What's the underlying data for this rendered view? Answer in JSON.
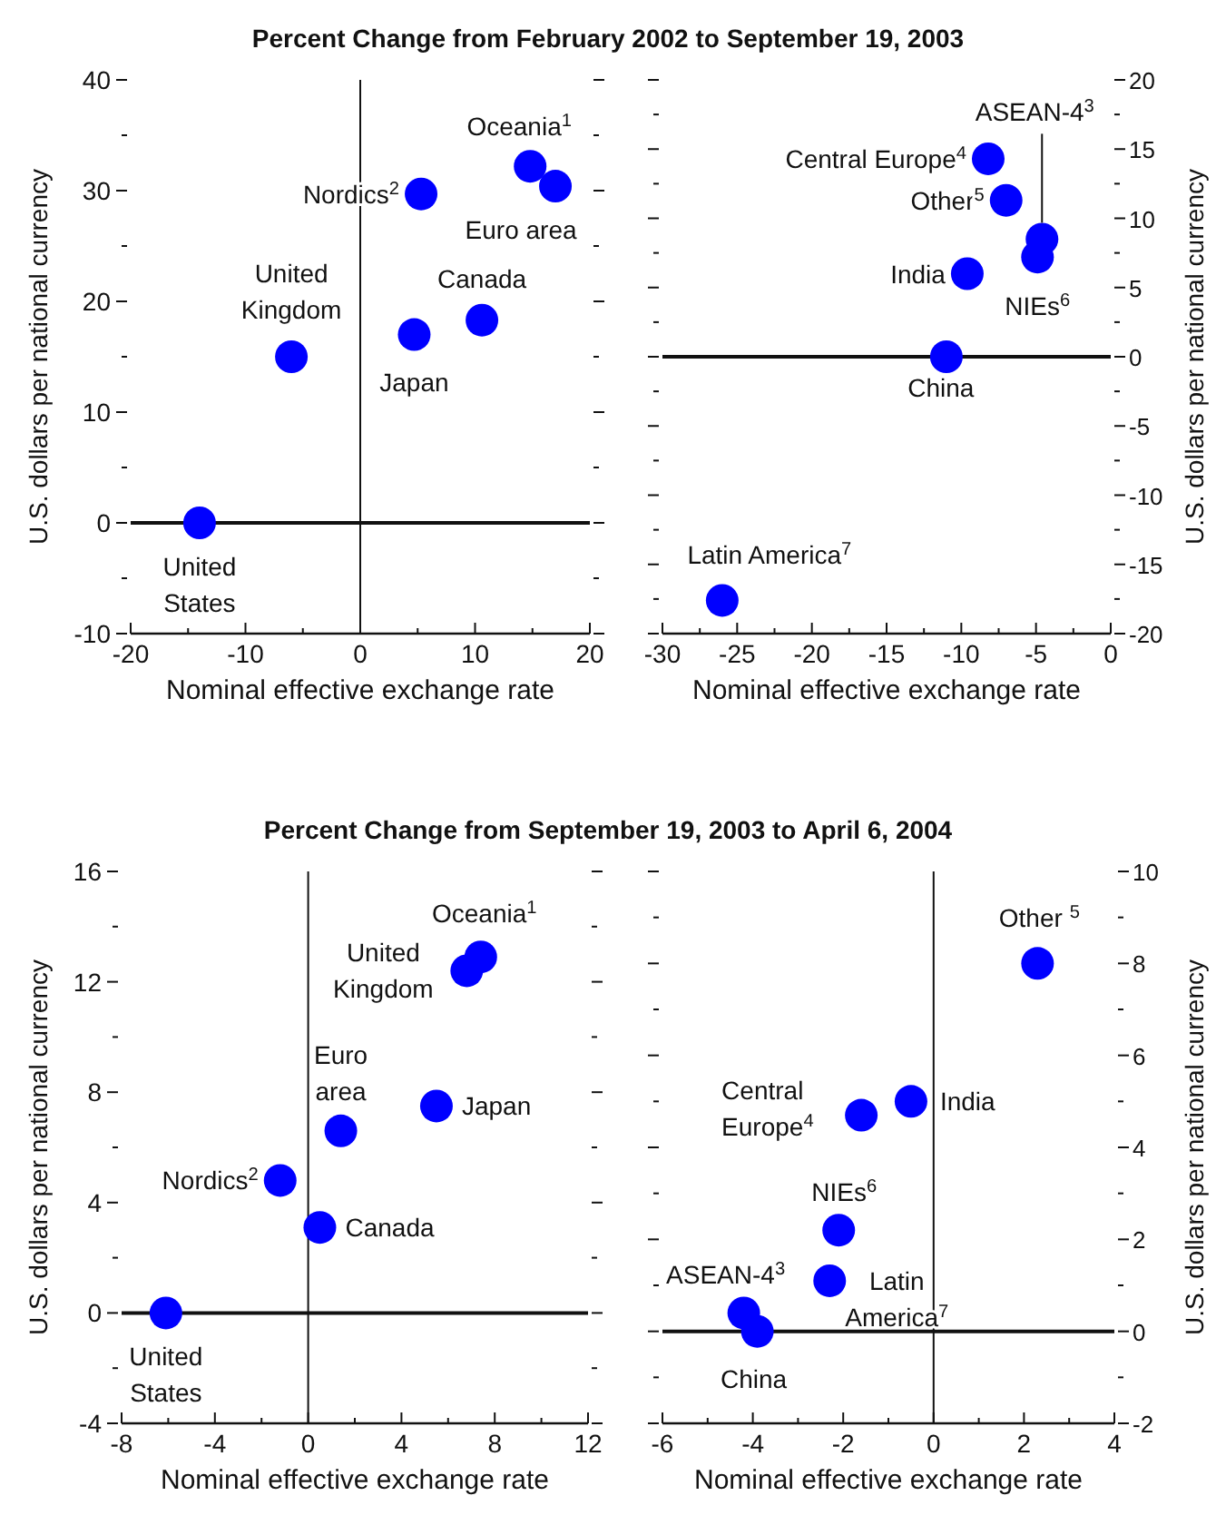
{
  "chart_data": [
    {
      "type": "scatter",
      "title": "Percent Change from February 2002 to September 19, 2003",
      "xlabel": "Nominal effective exchange rate",
      "ylabel": "U.S. dollars per national currency",
      "marker": "circle",
      "xlim": [
        -20,
        20
      ],
      "xticks": [
        -20,
        {
          "value": -15,
          "label": null
        },
        -10,
        {
          "value": -5,
          "label": null
        },
        0,
        {
          "value": 5,
          "label": null
        },
        10,
        {
          "value": 15,
          "label": null
        },
        20
      ],
      "ylim": [
        -10,
        40
      ],
      "yticks": [
        -10,
        {
          "value": -5,
          "label": null
        },
        0,
        {
          "value": 5,
          "label": null
        },
        10,
        {
          "value": 15,
          "label": null
        },
        20,
        {
          "value": 25,
          "label": null
        },
        30,
        {
          "value": 35,
          "label": null
        },
        40
      ],
      "series": [
        {
          "color": "#0000ff",
          "x": [
            -14,
            -6,
            5.3,
            4.7,
            10.6,
            14.8,
            17
          ],
          "values": [
            0,
            15,
            29.7,
            17,
            18.3,
            32.2,
            30.4
          ]
        }
      ],
      "ref_lines": [
        {
          "axis": "x",
          "value": 0
        },
        {
          "axis": "y",
          "value": 0
        }
      ],
      "annotations": [
        {
          "text": "United\nStates",
          "x": -14,
          "y": 0
        },
        {
          "text": "United\nKingdom",
          "x": -6,
          "y": 15
        },
        {
          "text": "Nordics$^{2}$",
          "x": 5.3,
          "y": 29.7
        },
        {
          "text": "Japan",
          "x": 4.7,
          "y": 17
        },
        {
          "text": "Canada",
          "x": 10.6,
          "y": 18.3
        },
        {
          "text": "Oceania$^{1}$",
          "x": 14.8,
          "y": 32.2
        },
        {
          "text": "Euro area",
          "x": 17,
          "y": 30.4
        }
      ]
    },
    {
      "type": "scatter",
      "xlabel": "Nominal effective exchange rate",
      "ylabel": "U.S. dollars per national currency",
      "marker": "circle",
      "xlim": [
        -30,
        0
      ],
      "xticks": [
        -30,
        {
          "value": -27.5,
          "label": null
        },
        -25,
        {
          "value": -22.5,
          "label": null
        },
        -20,
        {
          "value": -17.5,
          "label": null
        },
        -15,
        {
          "value": -12.5,
          "label": null
        },
        -10,
        {
          "value": -7.5,
          "label": null
        },
        -5,
        {
          "value": -2.5,
          "label": null
        },
        0
      ],
      "ylim": [
        -20,
        20
      ],
      "yticks": [
        -20,
        {
          "value": -17.5,
          "label": null
        },
        -15,
        {
          "value": -12.5,
          "label": null
        },
        -10,
        {
          "value": -7.5,
          "label": null
        },
        -5,
        {
          "value": -2.5,
          "label": null
        },
        0,
        {
          "value": 2.5,
          "label": null
        },
        5,
        {
          "value": 7.5,
          "label": null
        },
        10,
        {
          "value": 12.5,
          "label": null
        },
        15,
        {
          "value": 17.5,
          "label": null
        },
        20
      ],
      "series": [
        {
          "color": "#0000ff",
          "x": [
            -8.2,
            -7,
            -4.6,
            -4.9,
            -9.6,
            -11,
            -26
          ],
          "values": [
            14.3,
            11.3,
            8.5,
            7.2,
            6,
            0,
            -17.6
          ]
        }
      ],
      "ref_lines": [
        {
          "axis": "y",
          "value": 0
        }
      ],
      "annotations": [
        {
          "text": "Central Europe$^{4}$",
          "x": -8.2,
          "y": 14.3
        },
        {
          "text": "Other$^{5}$",
          "x": -7,
          "y": 11.3
        },
        {
          "text": "ASEAN-4$^{3}$",
          "x": -4.6,
          "y": 8.5
        },
        {
          "text": "NIEs$^{6}$",
          "x": -4.9,
          "y": 7.2
        },
        {
          "text": "India",
          "x": -9.6,
          "y": 6
        },
        {
          "text": "China",
          "x": -11,
          "y": 0
        },
        {
          "text": "Latin America$^{7}$",
          "x": -26,
          "y": -17.6
        }
      ]
    },
    {
      "type": "scatter",
      "title": "Percent Change from September 19, 2003 to April 6, 2004",
      "xlabel": "Nominal effective exchange rate",
      "ylabel": "U.S. dollars per national currency",
      "marker": "circle",
      "xlim": [
        -8,
        12
      ],
      "xticks": [
        -8,
        {
          "value": -6,
          "label": null
        },
        -4,
        {
          "value": -2,
          "label": null
        },
        0,
        {
          "value": 2,
          "label": null
        },
        4,
        {
          "value": 6,
          "label": null
        },
        8,
        {
          "value": 10,
          "label": null
        },
        12
      ],
      "ylim": [
        -4,
        16
      ],
      "yticks": [
        -4,
        {
          "value": -2,
          "label": null
        },
        0,
        {
          "value": 2,
          "label": null
        },
        4,
        {
          "value": 6,
          "label": null
        },
        8,
        {
          "value": 10,
          "label": null
        },
        12,
        {
          "value": 14,
          "label": null
        },
        16
      ],
      "series": [
        {
          "color": "#0000ff",
          "x": [
            -6.1,
            -1.2,
            0.5,
            1.4,
            5.5,
            6.8,
            7.4
          ],
          "values": [
            0,
            4.8,
            3.1,
            6.6,
            7.5,
            12.4,
            12.9
          ]
        }
      ],
      "ref_lines": [
        {
          "axis": "x",
          "value": 0
        },
        {
          "axis": "y",
          "value": 0
        }
      ],
      "annotations": [
        {
          "text": "United\nStates",
          "x": -6.1,
          "y": 0
        },
        {
          "text": "Nordics$^{2}$",
          "x": -1.2,
          "y": 4.8
        },
        {
          "text": "Canada",
          "x": 0.5,
          "y": 3.1
        },
        {
          "text": "Euro\narea",
          "x": 1.4,
          "y": 6.6
        },
        {
          "text": "Japan",
          "x": 5.5,
          "y": 7.5
        },
        {
          "text": "United\nKingdom",
          "x": 6.8,
          "y": 12.4
        },
        {
          "text": "Oceania$^{1}$",
          "x": 7.4,
          "y": 12.9
        }
      ]
    },
    {
      "type": "scatter",
      "xlabel": "Nominal effective exchange rate",
      "ylabel": "U.S. dollars per national currency",
      "marker": "circle",
      "xlim": [
        -6,
        4
      ],
      "xticks": [
        -6,
        {
          "value": -5,
          "label": null
        },
        -4,
        {
          "value": -3,
          "label": null
        },
        -2,
        {
          "value": -1,
          "label": null
        },
        0,
        {
          "value": 1,
          "label": null
        },
        2,
        {
          "value": 3,
          "label": null
        },
        4
      ],
      "ylim": [
        -2,
        10
      ],
      "yticks": [
        -2,
        {
          "value": -1,
          "label": null
        },
        0,
        {
          "value": 1,
          "label": null
        },
        2,
        {
          "value": 3,
          "label": null
        },
        4,
        {
          "value": 5,
          "label": null
        },
        6,
        {
          "value": 7,
          "label": null
        },
        8,
        {
          "value": 9,
          "label": null
        },
        10
      ],
      "series": [
        {
          "color": "#0000ff",
          "x": [
            2.3,
            -0.5,
            -1.6,
            -2.1,
            -2.3,
            -4.2,
            -3.9
          ],
          "values": [
            8,
            5,
            4.7,
            2.2,
            1.1,
            0.4,
            0
          ]
        }
      ],
      "ref_lines": [
        {
          "axis": "x",
          "value": 0
        },
        {
          "axis": "y",
          "value": 0
        }
      ],
      "annotations": [
        {
          "text": "Other $^{5}$",
          "x": 2.3,
          "y": 8
        },
        {
          "text": "India",
          "x": -0.5,
          "y": 5
        },
        {
          "text": "Central\nEurope$^{4}$",
          "x": -1.6,
          "y": 4.7
        },
        {
          "text": "NIEs$^{6}$",
          "x": -2.1,
          "y": 2.2
        },
        {
          "text": "Latin\nAmerica$^{7}$",
          "x": -2.3,
          "y": 1.1
        },
        {
          "text": "ASEAN-4$^{3}$",
          "x": -4.2,
          "y": 0.4
        },
        {
          "text": "China",
          "x": -3.9,
          "y": 0
        }
      ]
    }
  ]
}
